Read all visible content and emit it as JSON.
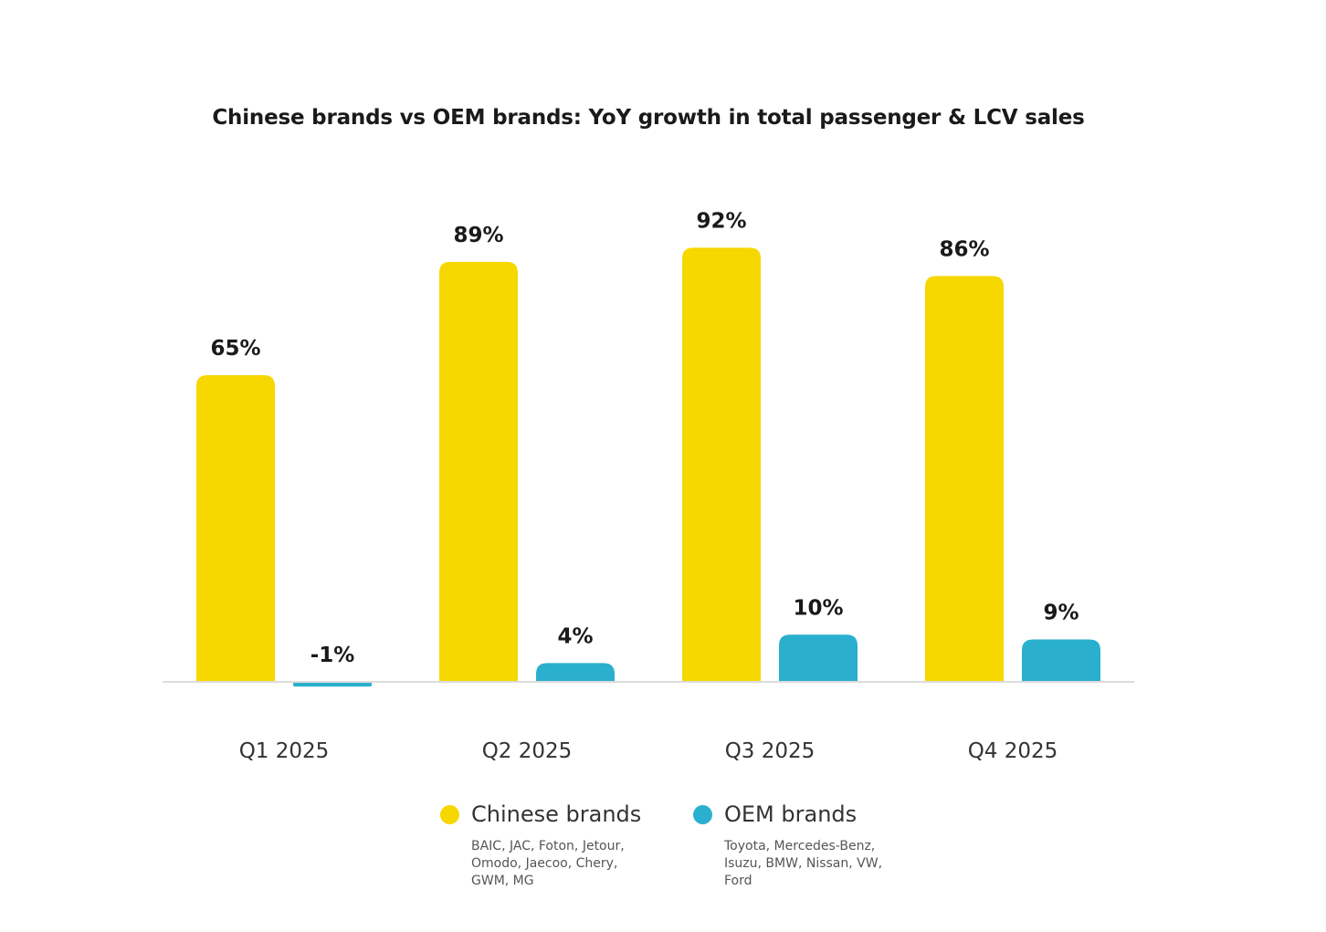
{
  "chart_data": {
    "type": "bar",
    "title": "Chinese brands vs OEM brands: YoY growth in total passenger & LCV sales",
    "categories": [
      "Q1 2025",
      "Q2 2025",
      "Q3 2025",
      "Q4 2025"
    ],
    "series": [
      {
        "name": "Chinese brands",
        "color": "#F7D700",
        "values": [
          65,
          89,
          92,
          86
        ],
        "labels": [
          "65%",
          "89%",
          "92%",
          "86%"
        ],
        "brands": "BAIC, JAC, Foton, Jetour, Omodo, Jaecoo, Chery, GWM, MG"
      },
      {
        "name": "OEM brands",
        "color": "#2BAFCE",
        "values": [
          -1,
          4,
          10,
          9
        ],
        "labels": [
          "-1%",
          "4%",
          "10%",
          "9%"
        ],
        "brands": "Toyota, Mercedes-Benz, Isuzu, BMW, Nissan, VW, Ford"
      }
    ],
    "xlabel": "",
    "ylabel": "",
    "ylim": [
      -2,
      100
    ],
    "grid": false,
    "legend": "bottom-center"
  }
}
